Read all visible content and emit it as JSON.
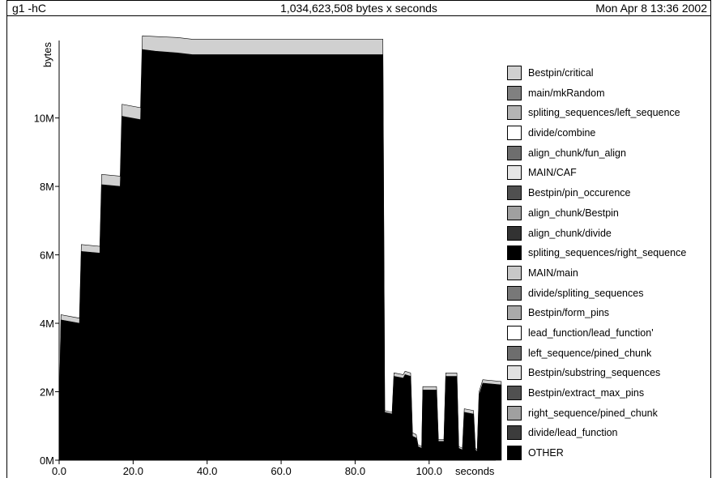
{
  "header": {
    "left": "g1 -hC",
    "center": "1,034,623,508 bytes x seconds",
    "right": "Mon Apr  8 13:36 2002"
  },
  "chart_data": {
    "type": "area",
    "stacked": true,
    "ylabel": "bytes",
    "xlabel": "seconds",
    "x_ticks": [
      "0.0",
      "20.0",
      "40.0",
      "60.0",
      "80.0",
      "100.0"
    ],
    "y_ticks": [
      "0M",
      "2M",
      "4M",
      "6M",
      "8M",
      "10M"
    ],
    "xlim": [
      0,
      118
    ],
    "ylim": [
      0,
      12500000
    ],
    "legend_position": "right",
    "series": [
      {
        "name": "OTHER",
        "color": "#000000",
        "points": [
          [
            0,
            1200000
          ],
          [
            0.5,
            4100000
          ],
          [
            5.5,
            4000000
          ],
          [
            6,
            6100000
          ],
          [
            11,
            6050000
          ],
          [
            11.5,
            8050000
          ],
          [
            16.5,
            8000000
          ],
          [
            17,
            10050000
          ],
          [
            22,
            9950000
          ],
          [
            22.5,
            12000000
          ],
          [
            26,
            11950000
          ],
          [
            32,
            11900000
          ],
          [
            36,
            11850000
          ],
          [
            87.5,
            11850000
          ],
          [
            88,
            1400000
          ],
          [
            90,
            1350000
          ],
          [
            90.5,
            2450000
          ],
          [
            93,
            2400000
          ],
          [
            93.5,
            2500000
          ],
          [
            95,
            2450000
          ],
          [
            95.5,
            700000
          ],
          [
            96.5,
            650000
          ],
          [
            97,
            400000
          ],
          [
            98,
            350000
          ],
          [
            98.3,
            2050000
          ],
          [
            102,
            2050000
          ],
          [
            102.5,
            550000
          ],
          [
            104,
            550000
          ],
          [
            104.5,
            2450000
          ],
          [
            107.5,
            2450000
          ],
          [
            108,
            350000
          ],
          [
            109,
            300000
          ],
          [
            109.5,
            1400000
          ],
          [
            112,
            1350000
          ],
          [
            112.5,
            300000
          ],
          [
            113,
            250000
          ],
          [
            113.5,
            1900000
          ],
          [
            114.5,
            2250000
          ],
          [
            119.5,
            2200000
          ]
        ]
      },
      {
        "name": "Bestpin/critical",
        "color": "#d0d0d0",
        "points": [
          [
            0,
            1200000
          ],
          [
            0.5,
            4250000
          ],
          [
            5.5,
            4150000
          ],
          [
            6,
            6300000
          ],
          [
            11,
            6250000
          ],
          [
            11.5,
            8350000
          ],
          [
            16.5,
            8300000
          ],
          [
            17,
            10400000
          ],
          [
            22,
            10300000
          ],
          [
            22.5,
            12400000
          ],
          [
            26,
            12380000
          ],
          [
            32,
            12350000
          ],
          [
            36,
            12300000
          ],
          [
            87.5,
            12300000
          ],
          [
            88,
            1450000
          ],
          [
            90,
            1400000
          ],
          [
            90.5,
            2550000
          ],
          [
            93,
            2500000
          ],
          [
            93.5,
            2600000
          ],
          [
            95,
            2550000
          ],
          [
            95.5,
            800000
          ],
          [
            96.5,
            750000
          ],
          [
            97,
            450000
          ],
          [
            98,
            400000
          ],
          [
            98.3,
            2150000
          ],
          [
            102,
            2150000
          ],
          [
            102.5,
            600000
          ],
          [
            104,
            600000
          ],
          [
            104.5,
            2550000
          ],
          [
            107.5,
            2550000
          ],
          [
            108,
            400000
          ],
          [
            109,
            350000
          ],
          [
            109.5,
            1500000
          ],
          [
            112,
            1450000
          ],
          [
            112.5,
            350000
          ],
          [
            113,
            300000
          ],
          [
            113.5,
            2000000
          ],
          [
            114.5,
            2350000
          ],
          [
            119.5,
            2300000
          ]
        ]
      },
      {
        "name": "main/mkRandom",
        "color": "#808080",
        "points": []
      },
      {
        "name": "spliting_sequences/left_sequence",
        "color": "#b4b4b4",
        "points": []
      },
      {
        "name": "divide/combine",
        "color": "#ffffff",
        "points": []
      },
      {
        "name": "align_chunk/fun_align",
        "color": "#6e6e6e",
        "points": []
      },
      {
        "name": "MAIN/CAF",
        "color": "#e6e6e6",
        "points": []
      },
      {
        "name": "Bestpin/pin_occurence",
        "color": "#505050",
        "points": []
      },
      {
        "name": "align_chunk/Bestpin",
        "color": "#a0a0a0",
        "points": []
      },
      {
        "name": "align_chunk/divide",
        "color": "#323232",
        "points": []
      },
      {
        "name": "spliting_sequences/right_sequence",
        "color": "#000000",
        "points": []
      },
      {
        "name": "MAIN/main",
        "color": "#c8c8c8",
        "points": []
      },
      {
        "name": "divide/spliting_sequences",
        "color": "#787878",
        "points": []
      },
      {
        "name": "Bestpin/form_pins",
        "color": "#aaaaaa",
        "points": []
      },
      {
        "name": "lead_function/lead_function'",
        "color": "#ffffff",
        "points": []
      },
      {
        "name": "left_sequence/pined_chunk",
        "color": "#6e6e6e",
        "points": []
      },
      {
        "name": "Bestpin/substring_sequences",
        "color": "#e1e1e1",
        "points": []
      },
      {
        "name": "Bestpin/extract_max_pins",
        "color": "#505050",
        "points": []
      },
      {
        "name": "right_sequence/pined_chunk",
        "color": "#a0a0a0",
        "points": []
      },
      {
        "name": "divide/lead_function",
        "color": "#3c3c3c",
        "points": []
      }
    ],
    "legend": [
      {
        "label": "Bestpin/critical",
        "color": "#d0d0d0"
      },
      {
        "label": "main/mkRandom",
        "color": "#808080"
      },
      {
        "label": "spliting_sequences/left_sequence",
        "color": "#b4b4b4"
      },
      {
        "label": "divide/combine",
        "color": "#ffffff"
      },
      {
        "label": "align_chunk/fun_align",
        "color": "#6e6e6e"
      },
      {
        "label": "MAIN/CAF",
        "color": "#e6e6e6"
      },
      {
        "label": "Bestpin/pin_occurence",
        "color": "#505050"
      },
      {
        "label": "align_chunk/Bestpin",
        "color": "#a0a0a0"
      },
      {
        "label": "align_chunk/divide",
        "color": "#323232"
      },
      {
        "label": "spliting_sequences/right_sequence",
        "color": "#000000"
      },
      {
        "label": "MAIN/main",
        "color": "#c8c8c8"
      },
      {
        "label": "divide/spliting_sequences",
        "color": "#787878"
      },
      {
        "label": "Bestpin/form_pins",
        "color": "#aaaaaa"
      },
      {
        "label": "lead_function/lead_function'",
        "color": "#ffffff"
      },
      {
        "label": "left_sequence/pined_chunk",
        "color": "#6e6e6e"
      },
      {
        "label": "Bestpin/substring_sequences",
        "color": "#e1e1e1"
      },
      {
        "label": "Bestpin/extract_max_pins",
        "color": "#505050"
      },
      {
        "label": "right_sequence/pined_chunk",
        "color": "#a0a0a0"
      },
      {
        "label": "divide/lead_function",
        "color": "#3c3c3c"
      },
      {
        "label": "OTHER",
        "color": "#000000"
      }
    ]
  }
}
